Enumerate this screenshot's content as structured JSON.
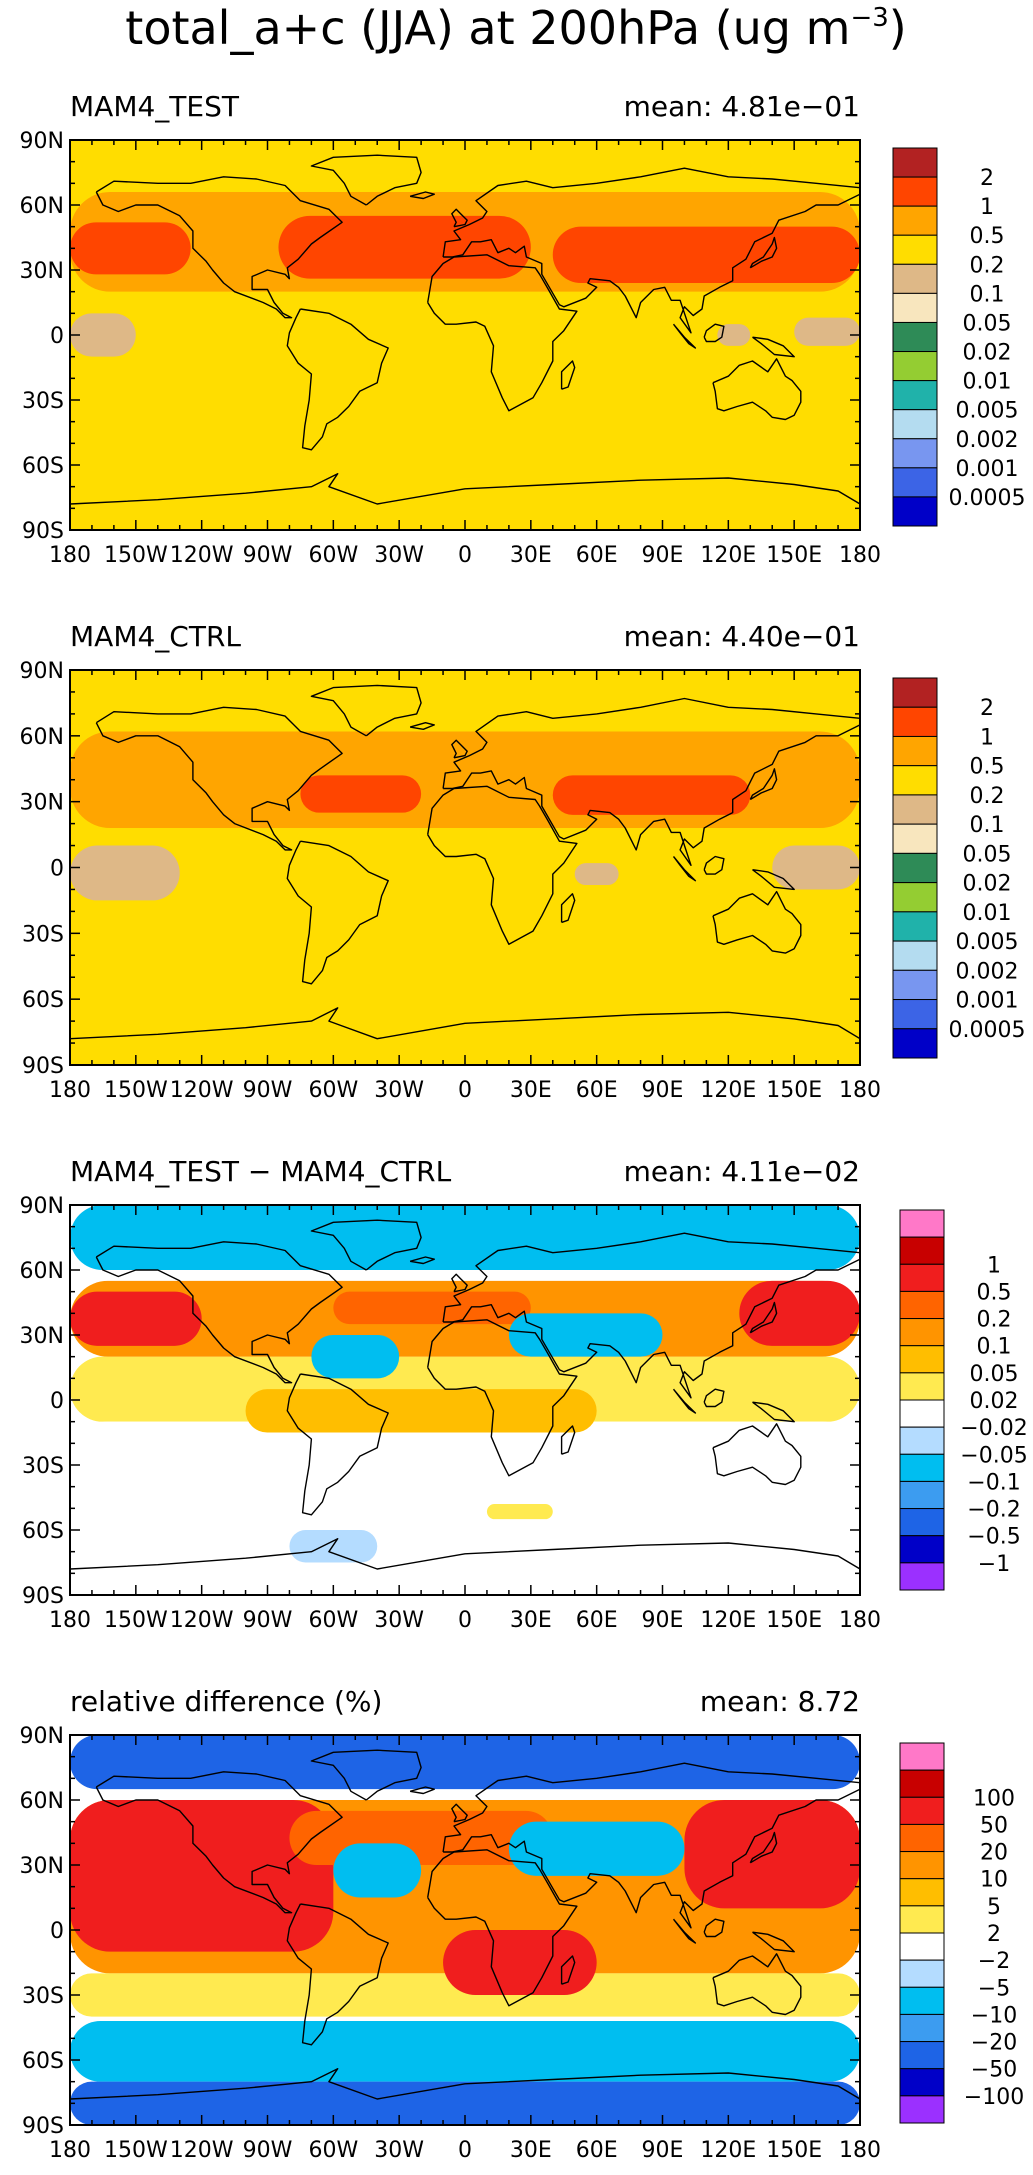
{
  "figure": {
    "title_main": "total_a+c (JJA) at 200hPa (ug m",
    "title_exp": "−3",
    "title_close": ")"
  },
  "axes": {
    "lat_labels": [
      "90N",
      "60N",
      "30N",
      "0",
      "30S",
      "60S",
      "90S"
    ],
    "lon_labels": [
      "180",
      "150W",
      "120W",
      "90W",
      "60W",
      "30W",
      "0",
      "30E",
      "60E",
      "90E",
      "120E",
      "150E",
      "180"
    ]
  },
  "colors": {
    "abs": [
      "#0000c8",
      "#3c64e6",
      "#7896f0",
      "#b4dcf0",
      "#20b2aa",
      "#94cd32",
      "#2e8b57",
      "#f8e6be",
      "#deb887",
      "#ffdd00",
      "#ffa500",
      "#ff4500",
      "#b22222"
    ],
    "diff": [
      "#9b30ff",
      "#0000c8",
      "#1e64e6",
      "#3c9cf0",
      "#00bef0",
      "#b4dcff",
      "#ffffff",
      "#ffea50",
      "#ffbe00",
      "#ff9400",
      "#ff6400",
      "#f01e1e",
      "#c80000",
      "#ff78c8"
    ],
    "coast": "#000000",
    "frame": "#000000"
  },
  "panels": [
    {
      "id": "test",
      "left_title": "MAM4_TEST",
      "right_title": "mean: 4.81e−01",
      "palette": "abs",
      "base_level": 9,
      "legend_labels": [
        "0.0005",
        "0.001",
        "0.002",
        "0.005",
        "0.01",
        "0.02",
        "0.05",
        "0.1",
        "0.2",
        "0.5",
        "1",
        "2"
      ],
      "fields": [
        {
          "lon": [
            -180,
            180
          ],
          "lat": [
            20,
            66
          ],
          "level": 10
        },
        {
          "lon": [
            -180,
            -125
          ],
          "lat": [
            28,
            52
          ],
          "level": 11
        },
        {
          "lon": [
            -85,
            30
          ],
          "lat": [
            26,
            55
          ],
          "level": 11
        },
        {
          "lon": [
            40,
            180
          ],
          "lat": [
            24,
            50
          ],
          "level": 11
        },
        {
          "lon": [
            -180,
            -150
          ],
          "lat": [
            -10,
            10
          ],
          "level": 8
        },
        {
          "lon": [
            150,
            180
          ],
          "lat": [
            -5,
            8
          ],
          "level": 8
        },
        {
          "lon": [
            115,
            130
          ],
          "lat": [
            -5,
            5
          ],
          "level": 8
        }
      ]
    },
    {
      "id": "ctrl",
      "left_title": "MAM4_CTRL",
      "right_title": "mean: 4.40e−01",
      "palette": "abs",
      "base_level": 9,
      "legend_labels": [
        "0.0005",
        "0.001",
        "0.002",
        "0.005",
        "0.01",
        "0.02",
        "0.05",
        "0.1",
        "0.2",
        "0.5",
        "1",
        "2"
      ],
      "fields": [
        {
          "lon": [
            -180,
            180
          ],
          "lat": [
            18,
            62
          ],
          "level": 10
        },
        {
          "lon": [
            -75,
            -20
          ],
          "lat": [
            25,
            42
          ],
          "level": 11
        },
        {
          "lon": [
            40,
            130
          ],
          "lat": [
            24,
            42
          ],
          "level": 11
        },
        {
          "lon": [
            -180,
            -130
          ],
          "lat": [
            -15,
            10
          ],
          "level": 8
        },
        {
          "lon": [
            140,
            180
          ],
          "lat": [
            -10,
            10
          ],
          "level": 8
        },
        {
          "lon": [
            50,
            70
          ],
          "lat": [
            -8,
            2
          ],
          "level": 8
        }
      ]
    },
    {
      "id": "diff",
      "left_title": "MAM4_TEST − MAM4_CTRL",
      "right_title": "mean: 4.11e−02",
      "palette": "diff",
      "base_level": 6,
      "legend_labels": [
        "−1",
        "−0.5",
        "−0.2",
        "−0.1",
        "−0.05",
        "−0.02",
        "0.02",
        "0.05",
        "0.1",
        "0.2",
        "0.5",
        "1"
      ],
      "fields": [
        {
          "lon": [
            -180,
            180
          ],
          "lat": [
            60,
            90
          ],
          "level": 4
        },
        {
          "lon": [
            -180,
            180
          ],
          "lat": [
            -10,
            20
          ],
          "level": 7
        },
        {
          "lon": [
            -180,
            180
          ],
          "lat": [
            20,
            55
          ],
          "level": 9
        },
        {
          "lon": [
            -180,
            -120
          ],
          "lat": [
            25,
            50
          ],
          "level": 11
        },
        {
          "lon": [
            125,
            180
          ],
          "lat": [
            25,
            55
          ],
          "level": 11
        },
        {
          "lon": [
            -60,
            30
          ],
          "lat": [
            35,
            50
          ],
          "level": 10
        },
        {
          "lon": [
            -70,
            -30
          ],
          "lat": [
            10,
            30
          ],
          "level": 4
        },
        {
          "lon": [
            20,
            90
          ],
          "lat": [
            20,
            40
          ],
          "level": 4
        },
        {
          "lon": [
            -180,
            180
          ],
          "lat": [
            -45,
            -10
          ],
          "level": 6
        },
        {
          "lon": [
            -100,
            60
          ],
          "lat": [
            -15,
            5
          ],
          "level": 8
        },
        {
          "lon": [
            -80,
            -40
          ],
          "lat": [
            -75,
            -60
          ],
          "level": 5
        },
        {
          "lon": [
            10,
            40
          ],
          "lat": [
            -55,
            -48
          ],
          "level": 7
        }
      ]
    },
    {
      "id": "rel",
      "left_title": "relative difference (%)",
      "right_title": "mean:   8.72",
      "palette": "diff",
      "base_level": 6,
      "legend_labels": [
        "−100",
        "−50",
        "−20",
        "−10",
        "−5",
        "−2",
        "2",
        "5",
        "10",
        "20",
        "50",
        "100"
      ],
      "fields": [
        {
          "lon": [
            -180,
            180
          ],
          "lat": [
            65,
            90
          ],
          "level": 2
        },
        {
          "lon": [
            -180,
            180
          ],
          "lat": [
            -20,
            60
          ],
          "level": 9
        },
        {
          "lon": [
            -180,
            -60
          ],
          "lat": [
            -10,
            60
          ],
          "level": 11
        },
        {
          "lon": [
            100,
            180
          ],
          "lat": [
            10,
            60
          ],
          "level": 11
        },
        {
          "lon": [
            -80,
            40
          ],
          "lat": [
            30,
            55
          ],
          "level": 10
        },
        {
          "lon": [
            -60,
            -20
          ],
          "lat": [
            15,
            40
          ],
          "level": 4
        },
        {
          "lon": [
            20,
            100
          ],
          "lat": [
            25,
            50
          ],
          "level": 4
        },
        {
          "lon": [
            -180,
            180
          ],
          "lat": [
            -40,
            -20
          ],
          "level": 7
        },
        {
          "lon": [
            -180,
            180
          ],
          "lat": [
            -70,
            -42
          ],
          "level": 4
        },
        {
          "lon": [
            -180,
            180
          ],
          "lat": [
            -90,
            -70
          ],
          "level": 2
        },
        {
          "lon": [
            -10,
            60
          ],
          "lat": [
            -30,
            0
          ],
          "level": 11
        }
      ]
    }
  ]
}
